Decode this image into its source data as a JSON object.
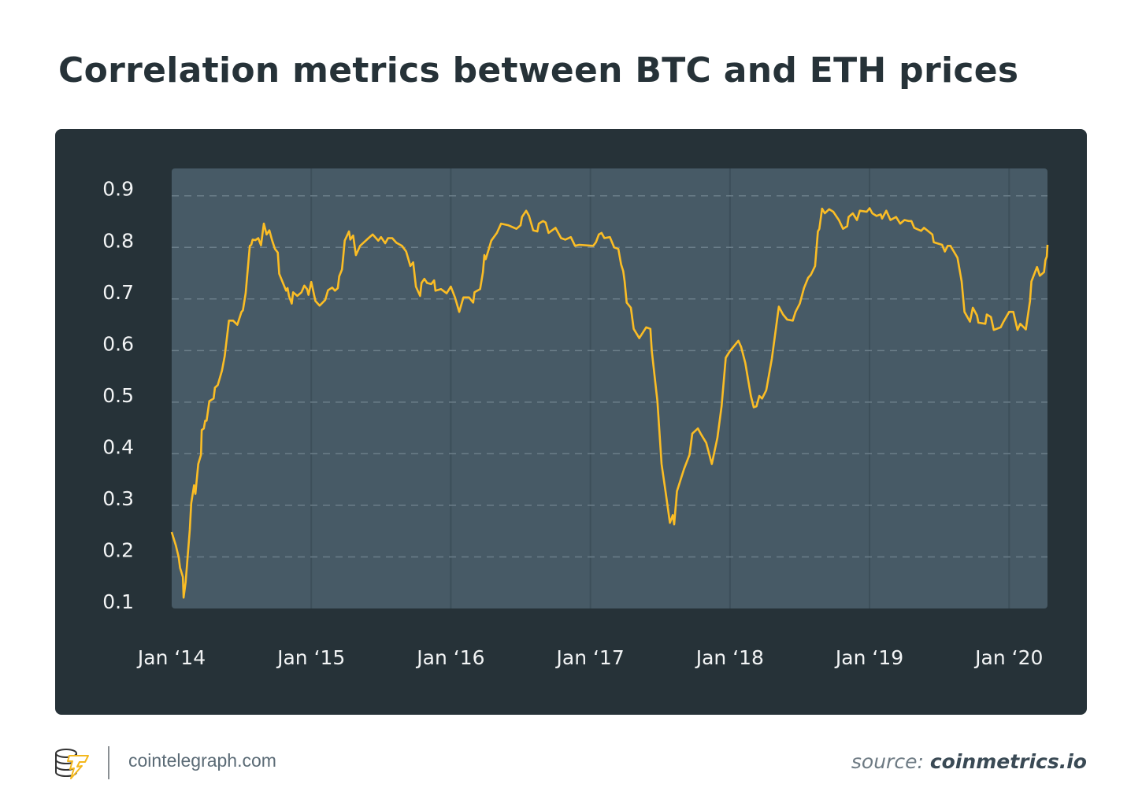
{
  "title": "Correlation metrics between BTC and ETH prices",
  "footer": {
    "site": "cointelegraph.com",
    "source_label": "source:",
    "source_name": "coinmetrics.io",
    "logo_text": "cointelegraph"
  },
  "colors": {
    "card_background": "#263238",
    "plot_background": "#475a66",
    "line": "#fbbd25",
    "title": "#263238"
  },
  "chart_data": {
    "type": "line",
    "title": "Correlation metrics between BTC and ETH prices",
    "xlabel": "",
    "ylabel": "",
    "x_unit": "year (decimal)",
    "xlim": [
      2014.0,
      2020.275
    ],
    "ylim": [
      0.1,
      0.953
    ],
    "grid": {
      "horizontal": "dashed",
      "vertical": "solid at each January"
    },
    "legend": "none",
    "y_ticks": [
      "0.9",
      "0.8",
      "0.7",
      "0.6",
      "0.5",
      "0.4",
      "0.3",
      "0.2",
      "0.1"
    ],
    "x_ticks": [
      {
        "label": "Jan ‘14",
        "year": 2014
      },
      {
        "label": "Jan ‘15",
        "year": 2015
      },
      {
        "label": "Jan ‘16",
        "year": 2016
      },
      {
        "label": "Jan ‘17",
        "year": 2017
      },
      {
        "label": "Jan ‘18",
        "year": 2018
      },
      {
        "label": "Jan ‘19",
        "year": 2019
      },
      {
        "label": "Jan ‘20",
        "year": 2020
      }
    ],
    "series": [
      {
        "points": [
          [
            2014.0,
            0.248
          ],
          [
            2014.03,
            0.222
          ],
          [
            2014.05,
            0.199
          ],
          [
            2014.06,
            0.179
          ],
          [
            2014.08,
            0.161
          ],
          [
            2014.085,
            0.121
          ],
          [
            2014.1,
            0.151
          ],
          [
            2014.13,
            0.253
          ],
          [
            2014.14,
            0.304
          ],
          [
            2014.16,
            0.339
          ],
          [
            2014.17,
            0.322
          ],
          [
            2014.19,
            0.38
          ],
          [
            2014.21,
            0.398
          ],
          [
            2014.215,
            0.446
          ],
          [
            2014.23,
            0.449
          ],
          [
            2014.24,
            0.464
          ],
          [
            2014.25,
            0.464
          ],
          [
            2014.27,
            0.502
          ],
          [
            2014.3,
            0.507
          ],
          [
            2014.31,
            0.528
          ],
          [
            2014.33,
            0.533
          ],
          [
            2014.36,
            0.561
          ],
          [
            2014.38,
            0.589
          ],
          [
            2014.41,
            0.658
          ],
          [
            2014.44,
            0.658
          ],
          [
            2014.47,
            0.65
          ],
          [
            2014.5,
            0.675
          ],
          [
            2014.51,
            0.678
          ],
          [
            2014.53,
            0.711
          ],
          [
            2014.56,
            0.803
          ],
          [
            2014.57,
            0.805
          ],
          [
            2014.58,
            0.815
          ],
          [
            2014.6,
            0.814
          ],
          [
            2014.62,
            0.818
          ],
          [
            2014.64,
            0.804
          ],
          [
            2014.66,
            0.846
          ],
          [
            2014.68,
            0.825
          ],
          [
            2014.7,
            0.833
          ],
          [
            2014.72,
            0.813
          ],
          [
            2014.74,
            0.797
          ],
          [
            2014.76,
            0.79
          ],
          [
            2014.77,
            0.749
          ],
          [
            2014.8,
            0.729
          ],
          [
            2014.82,
            0.716
          ],
          [
            2014.83,
            0.721
          ],
          [
            2014.84,
            0.706
          ],
          [
            2014.86,
            0.691
          ],
          [
            2014.87,
            0.713
          ],
          [
            2014.9,
            0.706
          ],
          [
            2014.93,
            0.713
          ],
          [
            2014.95,
            0.726
          ],
          [
            2014.97,
            0.719
          ],
          [
            2014.98,
            0.708
          ],
          [
            2015.0,
            0.733
          ],
          [
            2015.03,
            0.696
          ],
          [
            2015.06,
            0.687
          ],
          [
            2015.1,
            0.698
          ],
          [
            2015.12,
            0.717
          ],
          [
            2015.15,
            0.722
          ],
          [
            2015.17,
            0.716
          ],
          [
            2015.19,
            0.721
          ],
          [
            2015.2,
            0.744
          ],
          [
            2015.22,
            0.757
          ],
          [
            2015.23,
            0.785
          ],
          [
            2015.24,
            0.813
          ],
          [
            2015.27,
            0.831
          ],
          [
            2015.28,
            0.815
          ],
          [
            2015.3,
            0.823
          ],
          [
            2015.32,
            0.785
          ],
          [
            2015.35,
            0.803
          ],
          [
            2015.41,
            0.818
          ],
          [
            2015.44,
            0.825
          ],
          [
            2015.48,
            0.813
          ],
          [
            2015.5,
            0.82
          ],
          [
            2015.53,
            0.808
          ],
          [
            2015.55,
            0.818
          ],
          [
            2015.58,
            0.818
          ],
          [
            2015.61,
            0.809
          ],
          [
            2015.65,
            0.803
          ],
          [
            2015.68,
            0.792
          ],
          [
            2015.71,
            0.764
          ],
          [
            2015.73,
            0.771
          ],
          [
            2015.75,
            0.724
          ],
          [
            2015.78,
            0.706
          ],
          [
            2015.79,
            0.731
          ],
          [
            2015.81,
            0.739
          ],
          [
            2015.83,
            0.731
          ],
          [
            2015.86,
            0.729
          ],
          [
            2015.88,
            0.736
          ],
          [
            2015.89,
            0.716
          ],
          [
            2015.93,
            0.719
          ],
          [
            2015.97,
            0.711
          ],
          [
            2016.0,
            0.724
          ],
          [
            2016.03,
            0.703
          ],
          [
            2016.06,
            0.675
          ],
          [
            2016.09,
            0.703
          ],
          [
            2016.13,
            0.703
          ],
          [
            2016.16,
            0.693
          ],
          [
            2016.17,
            0.713
          ],
          [
            2016.21,
            0.719
          ],
          [
            2016.23,
            0.752
          ],
          [
            2016.24,
            0.785
          ],
          [
            2016.25,
            0.777
          ],
          [
            2016.27,
            0.795
          ],
          [
            2016.29,
            0.813
          ],
          [
            2016.33,
            0.828
          ],
          [
            2016.36,
            0.846
          ],
          [
            2016.41,
            0.843
          ],
          [
            2016.47,
            0.836
          ],
          [
            2016.5,
            0.843
          ],
          [
            2016.51,
            0.859
          ],
          [
            2016.54,
            0.871
          ],
          [
            2016.56,
            0.861
          ],
          [
            2016.59,
            0.833
          ],
          [
            2016.62,
            0.831
          ],
          [
            2016.63,
            0.846
          ],
          [
            2016.66,
            0.851
          ],
          [
            2016.68,
            0.848
          ],
          [
            2016.7,
            0.828
          ],
          [
            2016.75,
            0.838
          ],
          [
            2016.79,
            0.818
          ],
          [
            2016.82,
            0.815
          ],
          [
            2016.86,
            0.82
          ],
          [
            2016.89,
            0.803
          ],
          [
            2016.92,
            0.805
          ],
          [
            2017.02,
            0.803
          ],
          [
            2017.04,
            0.81
          ],
          [
            2017.06,
            0.825
          ],
          [
            2017.08,
            0.828
          ],
          [
            2017.1,
            0.818
          ],
          [
            2017.14,
            0.82
          ],
          [
            2017.17,
            0.8
          ],
          [
            2017.2,
            0.797
          ],
          [
            2017.22,
            0.767
          ],
          [
            2017.235,
            0.754
          ],
          [
            2017.245,
            0.734
          ],
          [
            2017.26,
            0.693
          ],
          [
            2017.29,
            0.683
          ],
          [
            2017.31,
            0.642
          ],
          [
            2017.35,
            0.624
          ],
          [
            2017.4,
            0.645
          ],
          [
            2017.43,
            0.642
          ],
          [
            2017.44,
            0.599
          ],
          [
            2017.48,
            0.502
          ],
          [
            2017.51,
            0.38
          ],
          [
            2017.54,
            0.324
          ],
          [
            2017.57,
            0.266
          ],
          [
            2017.59,
            0.281
          ],
          [
            2017.6,
            0.263
          ],
          [
            2017.62,
            0.327
          ],
          [
            2017.67,
            0.37
          ],
          [
            2017.71,
            0.398
          ],
          [
            2017.73,
            0.439
          ],
          [
            2017.77,
            0.449
          ],
          [
            2017.79,
            0.439
          ],
          [
            2017.83,
            0.421
          ],
          [
            2017.87,
            0.38
          ],
          [
            2017.91,
            0.431
          ],
          [
            2017.94,
            0.492
          ],
          [
            2017.97,
            0.586
          ],
          [
            2018.0,
            0.599
          ],
          [
            2018.06,
            0.619
          ],
          [
            2018.08,
            0.607
          ],
          [
            2018.11,
            0.576
          ],
          [
            2018.15,
            0.512
          ],
          [
            2018.17,
            0.49
          ],
          [
            2018.19,
            0.492
          ],
          [
            2018.21,
            0.512
          ],
          [
            2018.23,
            0.507
          ],
          [
            2018.26,
            0.523
          ],
          [
            2018.3,
            0.584
          ],
          [
            2018.35,
            0.685
          ],
          [
            2018.38,
            0.67
          ],
          [
            2018.41,
            0.66
          ],
          [
            2018.45,
            0.658
          ],
          [
            2018.47,
            0.675
          ],
          [
            2018.5,
            0.691
          ],
          [
            2018.53,
            0.721
          ],
          [
            2018.56,
            0.741
          ],
          [
            2018.58,
            0.747
          ],
          [
            2018.61,
            0.764
          ],
          [
            2018.63,
            0.831
          ],
          [
            2018.64,
            0.836
          ],
          [
            2018.66,
            0.875
          ],
          [
            2018.68,
            0.866
          ],
          [
            2018.71,
            0.874
          ],
          [
            2018.74,
            0.869
          ],
          [
            2018.78,
            0.853
          ],
          [
            2018.81,
            0.836
          ],
          [
            2018.84,
            0.841
          ],
          [
            2018.85,
            0.859
          ],
          [
            2018.88,
            0.866
          ],
          [
            2018.91,
            0.853
          ],
          [
            2018.93,
            0.871
          ],
          [
            2018.98,
            0.869
          ],
          [
            2019.0,
            0.876
          ],
          [
            2019.02,
            0.866
          ],
          [
            2019.05,
            0.861
          ],
          [
            2019.08,
            0.864
          ],
          [
            2019.09,
            0.856
          ],
          [
            2019.12,
            0.871
          ],
          [
            2019.15,
            0.853
          ],
          [
            2019.19,
            0.859
          ],
          [
            2019.22,
            0.846
          ],
          [
            2019.25,
            0.853
          ],
          [
            2019.28,
            0.851
          ],
          [
            2019.3,
            0.851
          ],
          [
            2019.32,
            0.838
          ],
          [
            2019.37,
            0.832
          ],
          [
            2019.39,
            0.838
          ],
          [
            2019.45,
            0.825
          ],
          [
            2019.46,
            0.81
          ],
          [
            2019.52,
            0.805
          ],
          [
            2019.54,
            0.792
          ],
          [
            2019.56,
            0.803
          ],
          [
            2019.58,
            0.803
          ],
          [
            2019.63,
            0.78
          ],
          [
            2019.66,
            0.734
          ],
          [
            2019.68,
            0.675
          ],
          [
            2019.72,
            0.656
          ],
          [
            2019.74,
            0.683
          ],
          [
            2019.77,
            0.668
          ],
          [
            2019.78,
            0.654
          ],
          [
            2019.83,
            0.652
          ],
          [
            2019.84,
            0.67
          ],
          [
            2019.87,
            0.665
          ],
          [
            2019.89,
            0.64
          ],
          [
            2019.94,
            0.645
          ],
          [
            2019.96,
            0.656
          ],
          [
            2020.0,
            0.675
          ],
          [
            2020.03,
            0.675
          ],
          [
            2020.06,
            0.64
          ],
          [
            2020.08,
            0.652
          ],
          [
            2020.12,
            0.641
          ],
          [
            2020.15,
            0.696
          ],
          [
            2020.16,
            0.734
          ],
          [
            2020.2,
            0.762
          ],
          [
            2020.22,
            0.745
          ],
          [
            2020.25,
            0.752
          ],
          [
            2020.26,
            0.775
          ],
          [
            2020.27,
            0.782
          ],
          [
            2020.275,
            0.805
          ]
        ]
      }
    ]
  }
}
